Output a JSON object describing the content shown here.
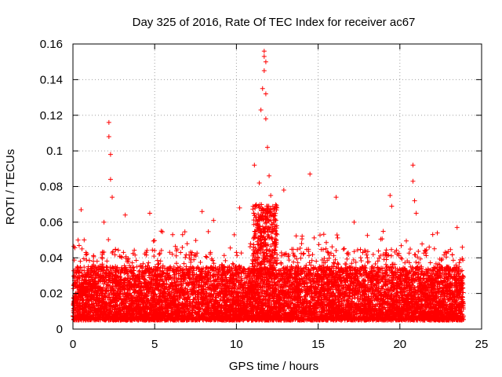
{
  "chart_data": {
    "type": "scatter",
    "title": "Day 325 of 2016, Rate Of TEC Index for receiver ac67",
    "xlabel": "GPS time / hours",
    "ylabel": "ROTI / TECUs",
    "xlim": [
      0,
      25
    ],
    "ylim": [
      0,
      0.16
    ],
    "xticks": [
      0,
      5,
      10,
      15,
      20,
      25
    ],
    "yticks": [
      0,
      0.02,
      0.04,
      0.06,
      0.08,
      0.1,
      0.12,
      0.14,
      0.16
    ],
    "xtick_labels": [
      "0",
      "5",
      "10",
      "15",
      "20",
      "25"
    ],
    "ytick_labels": [
      "0",
      "0.02",
      "0.04",
      "0.06",
      "0.08",
      "0.1",
      "0.12",
      "0.14",
      "0.16"
    ],
    "grid": true,
    "marker": "+",
    "marker_color": "#ff0000",
    "data_range_hours": [
      0,
      23.9
    ],
    "baseline_band": [
      0.005,
      0.035
    ],
    "series": [
      {
        "name": "ROTI",
        "notable_points": [
          {
            "x": 0.5,
            "y": 0.067
          },
          {
            "x": 1.9,
            "y": 0.06
          },
          {
            "x": 2.2,
            "y": 0.116
          },
          {
            "x": 2.2,
            "y": 0.108
          },
          {
            "x": 2.3,
            "y": 0.098
          },
          {
            "x": 2.3,
            "y": 0.084
          },
          {
            "x": 2.4,
            "y": 0.074
          },
          {
            "x": 3.2,
            "y": 0.064
          },
          {
            "x": 4.7,
            "y": 0.065
          },
          {
            "x": 5.4,
            "y": 0.055
          },
          {
            "x": 6.1,
            "y": 0.053
          },
          {
            "x": 7.9,
            "y": 0.066
          },
          {
            "x": 8.6,
            "y": 0.061
          },
          {
            "x": 10.2,
            "y": 0.068
          },
          {
            "x": 11.1,
            "y": 0.092
          },
          {
            "x": 11.4,
            "y": 0.082
          },
          {
            "x": 11.5,
            "y": 0.123
          },
          {
            "x": 11.6,
            "y": 0.135
          },
          {
            "x": 11.7,
            "y": 0.156
          },
          {
            "x": 11.7,
            "y": 0.153
          },
          {
            "x": 11.7,
            "y": 0.145
          },
          {
            "x": 11.8,
            "y": 0.15
          },
          {
            "x": 11.8,
            "y": 0.132
          },
          {
            "x": 11.8,
            "y": 0.118
          },
          {
            "x": 11.9,
            "y": 0.102
          },
          {
            "x": 12.0,
            "y": 0.086
          },
          {
            "x": 12.1,
            "y": 0.075
          },
          {
            "x": 12.3,
            "y": 0.065
          },
          {
            "x": 12.9,
            "y": 0.078
          },
          {
            "x": 14.5,
            "y": 0.087
          },
          {
            "x": 16.1,
            "y": 0.074
          },
          {
            "x": 17.2,
            "y": 0.06
          },
          {
            "x": 19.4,
            "y": 0.075
          },
          {
            "x": 19.5,
            "y": 0.069
          },
          {
            "x": 20.8,
            "y": 0.092
          },
          {
            "x": 20.8,
            "y": 0.083
          },
          {
            "x": 20.9,
            "y": 0.072
          },
          {
            "x": 21.0,
            "y": 0.065
          },
          {
            "x": 23.5,
            "y": 0.057
          }
        ]
      }
    ]
  }
}
